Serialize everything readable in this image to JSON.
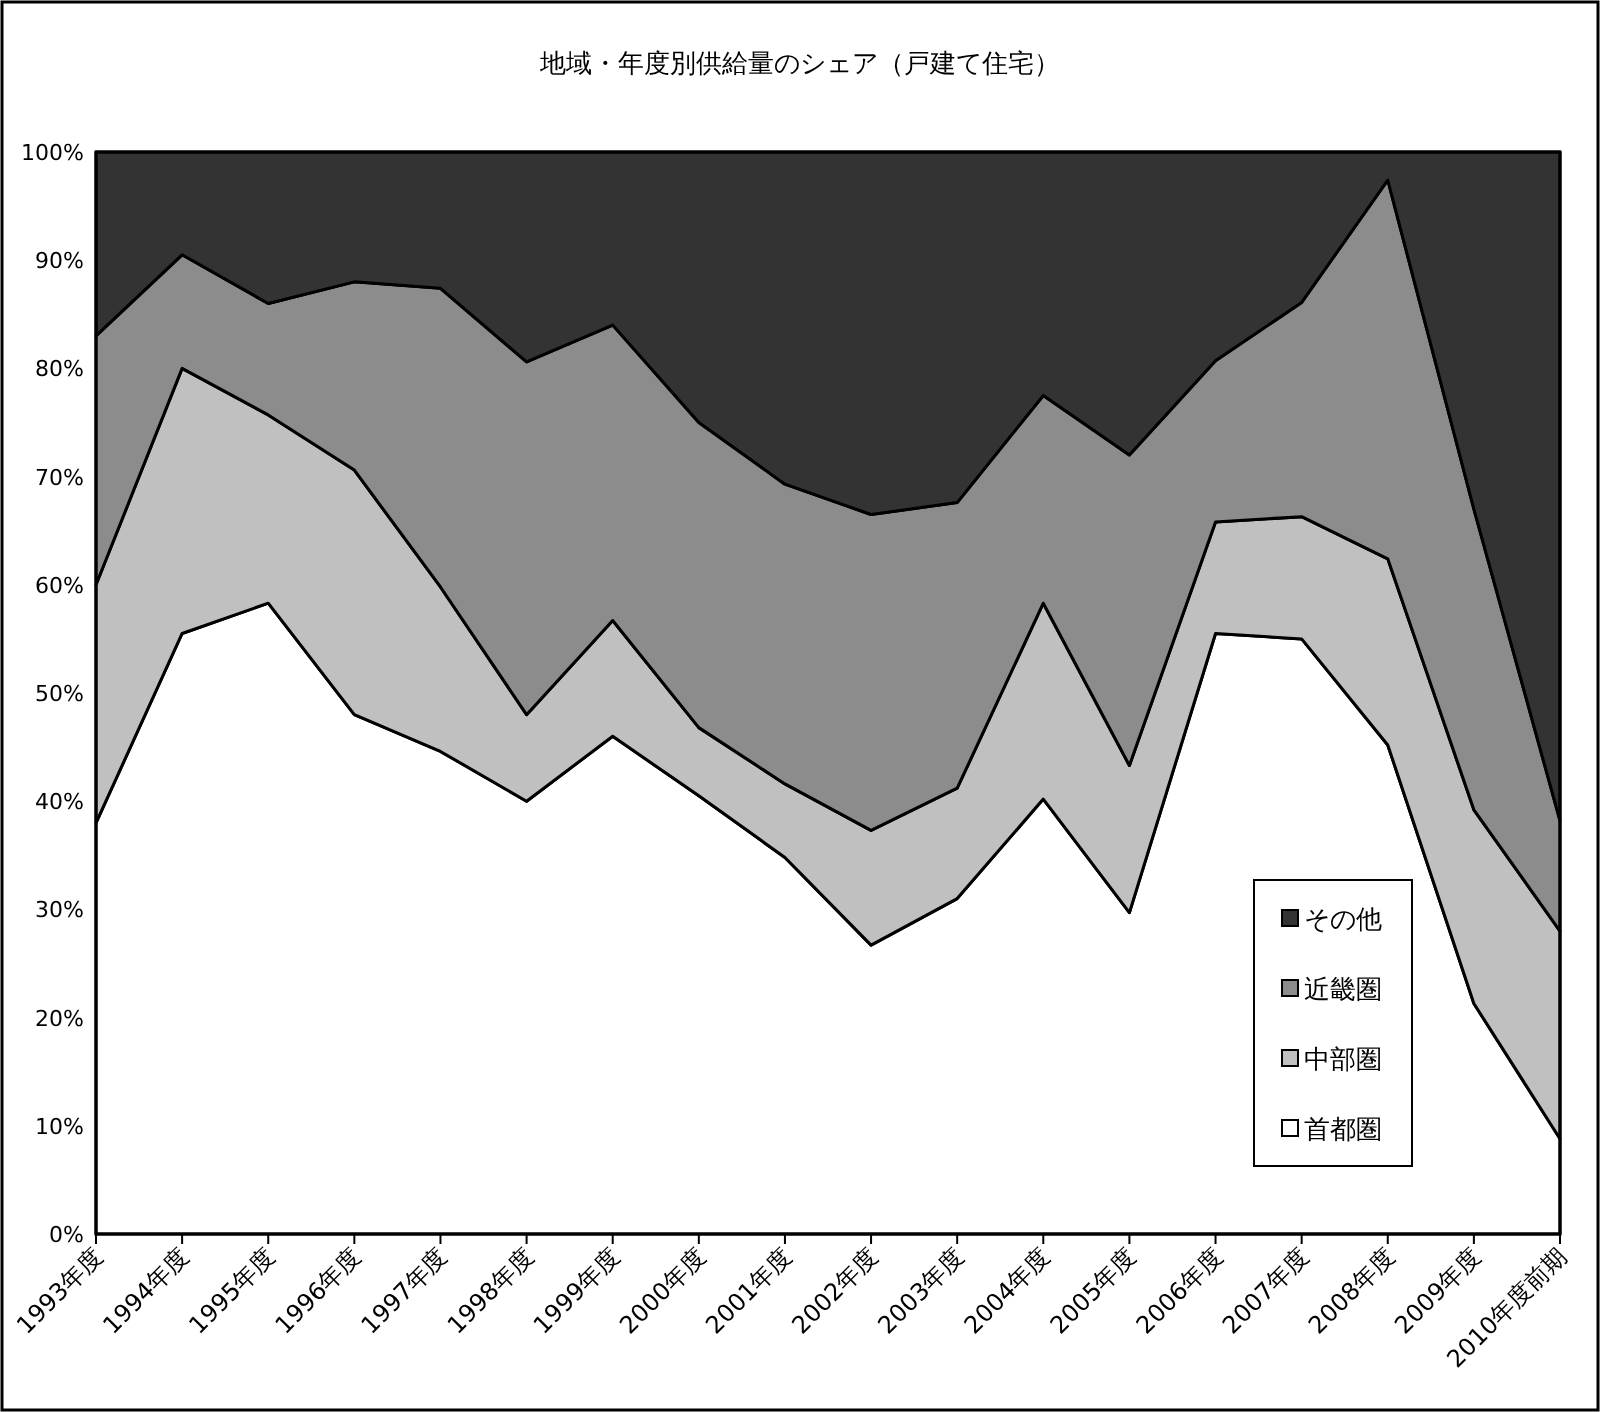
{
  "chart_data": {
    "type": "area",
    "title": "地域・年度別供給量のシェア（戸建て住宅）",
    "stacked": true,
    "legend": "bottom right",
    "categories": [
      "1993年度",
      "1994年度",
      "1995年度",
      "1996年度",
      "1997年度",
      "1998年度",
      "1999年度",
      "2000年度",
      "2001年度",
      "2002年度",
      "2003年度",
      "2004年度",
      "2005年度",
      "2006年度",
      "2007年度",
      "2008年度",
      "2009年度",
      "2010年度前期"
    ],
    "ylim": [
      0,
      100
    ],
    "yticks": [
      {
        "value": 0,
        "label": "0%"
      },
      {
        "value": 10,
        "label": "10%"
      },
      {
        "value": 20,
        "label": "20%"
      },
      {
        "value": 30,
        "label": "30%"
      },
      {
        "value": 40,
        "label": "40%"
      },
      {
        "value": 50,
        "label": "50%"
      },
      {
        "value": 60,
        "label": "60%"
      },
      {
        "value": 70,
        "label": "70%"
      },
      {
        "value": 80,
        "label": "80%"
      },
      {
        "value": 90,
        "label": "90%"
      },
      {
        "value": 100,
        "label": "100%"
      }
    ],
    "series": [
      {
        "name": "首都圏",
        "color": "#ffffff",
        "values": [
          38,
          55.5,
          58.3,
          48,
          44.6,
          40,
          46,
          40.5,
          34.8,
          26.7,
          31,
          40.2,
          29.7,
          55.5,
          55,
          45.2,
          21.3,
          8.8
        ]
      },
      {
        "name": "中部圏",
        "color": "#c0c0c0",
        "values": [
          22,
          24.5,
          17.4,
          22.6,
          15.2,
          8,
          10.7,
          6.3,
          6.8,
          10.6,
          10.2,
          18.1,
          13.6,
          10.3,
          11.3,
          17.2,
          17.9,
          19.2
        ]
      },
      {
        "name": "近畿圏",
        "color": "#8c8c8c",
        "values": [
          23,
          10.5,
          10.3,
          17.4,
          27.6,
          32.6,
          27.3,
          28.2,
          27.7,
          29.2,
          26.4,
          19.2,
          28.7,
          14.9,
          19.8,
          35,
          27.8,
          10.2
        ]
      },
      {
        "name": "その他",
        "color": "#333333",
        "values": [
          17,
          9.5,
          14,
          12,
          12.6,
          19.4,
          16,
          25,
          30.7,
          33.5,
          32.4,
          22.5,
          28,
          19.3,
          13.9,
          2.6,
          33,
          61.8
        ]
      }
    ]
  }
}
